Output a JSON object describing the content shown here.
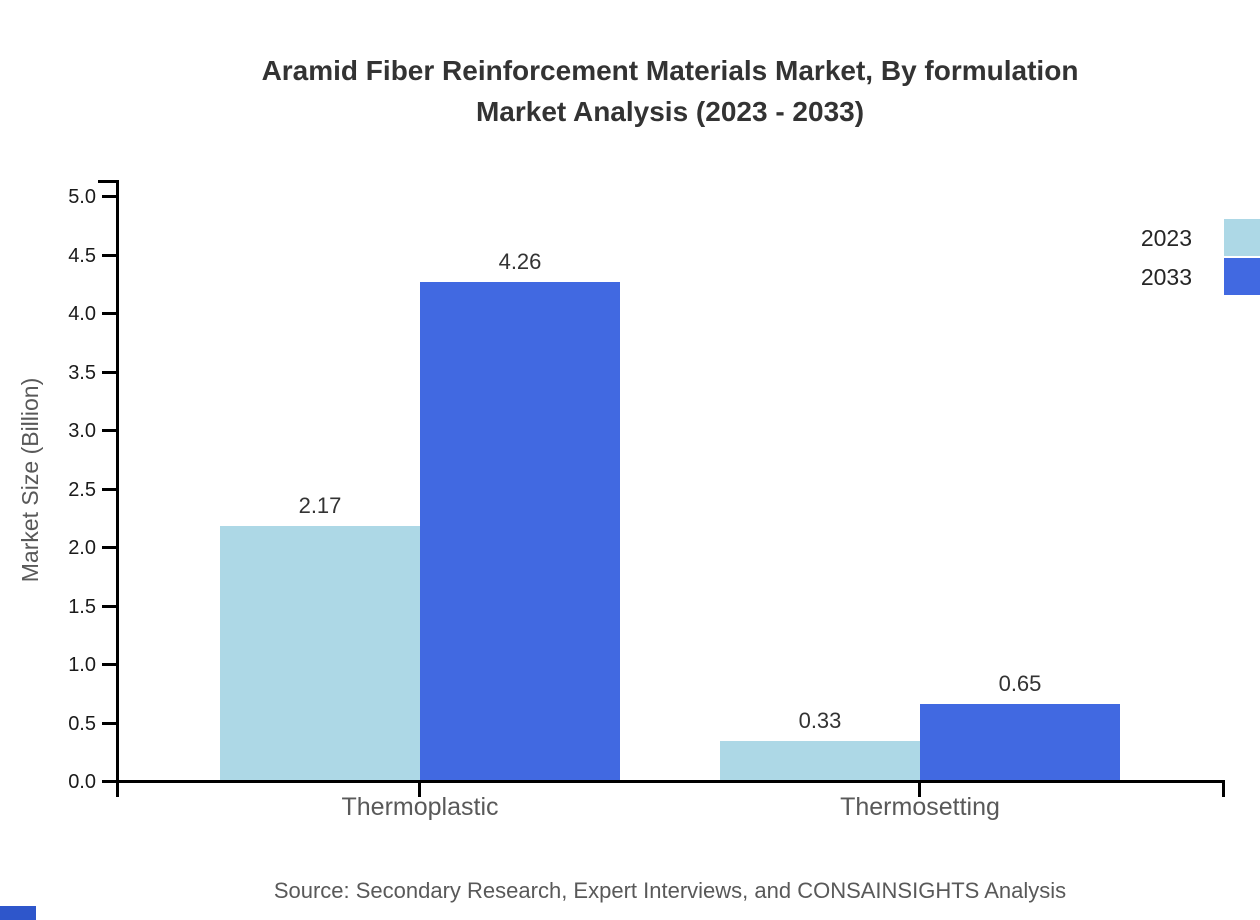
{
  "title": {
    "line1": "Aramid Fiber Reinforcement Materials Market, By formulation",
    "line2": "Market Analysis (2023 - 2033)"
  },
  "chart_data": {
    "type": "bar",
    "title": "Aramid Fiber Reinforcement Materials Market, By formulation Market Analysis (2023 - 2033)",
    "categories": [
      "Thermoplastic",
      "Thermosetting"
    ],
    "series": [
      {
        "name": "2023",
        "color": "#ADD8E6",
        "values": [
          2.17,
          0.33
        ],
        "value_labels": [
          "2.17",
          "0.33"
        ]
      },
      {
        "name": "2033",
        "color": "#4169E1",
        "values": [
          4.26,
          0.65
        ],
        "value_labels": [
          "4.26",
          "0.65"
        ]
      }
    ],
    "xlabel": "",
    "ylabel": "Market Size (Billion)",
    "ylim": [
      0,
      5
    ],
    "ytick_step": 0.5,
    "ytick_labels": [
      "0.0",
      "0.5",
      "1.0",
      "1.5",
      "2.0",
      "2.5",
      "3.0",
      "3.5",
      "4.0",
      "4.5",
      "5.0"
    ],
    "grid": false,
    "legend_position": "right"
  },
  "colors": {
    "title_text": "#333333",
    "axis_line": "#000000",
    "tick_label": "#1a1a1a",
    "muted_label": "#595959",
    "series_2023": "#ADD8E6",
    "series_2033": "#4169E1",
    "watermark": "#2e56cb"
  },
  "footer": {
    "source": "Source: Secondary Research, Expert Interviews, and CONSAINSIGHTS Analysis"
  }
}
